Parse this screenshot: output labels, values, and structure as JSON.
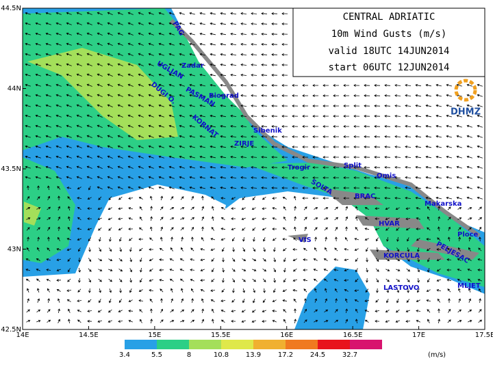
{
  "header": {
    "lines": [
      "CENTRAL ADRIATIC",
      "10m Wind Gusts (m/s)",
      "valid 18UTC 14JUN2014",
      "start 06UTC 12JUN2014"
    ],
    "logo": "DHMZ"
  },
  "x_axis": {
    "labels": [
      "14E",
      "14.5E",
      "15E",
      "15.5E",
      "16E",
      "16.5E",
      "17E",
      "17.5E"
    ]
  },
  "y_axis": {
    "labels": [
      "42.5N",
      "43N",
      "43.5N",
      "44N",
      "44.5N"
    ]
  },
  "places": [
    "PAG",
    "Zadar",
    "UGLJAN",
    "PASMAN",
    "Biograd",
    "DUGI O.",
    "KORNAT",
    "Sibenik",
    "ZIRJE",
    "Trogir",
    "Split",
    "Omis",
    "SOLTA",
    "BRAC",
    "Makarska",
    "HVAR",
    "VIS",
    "Ploce",
    "KORCULA",
    "PELJESAC",
    "LASTOVO",
    "MLJET"
  ],
  "legend": {
    "labels": [
      "3.4",
      "5.5",
      "8",
      "10.8",
      "13.9",
      "17.2",
      "24.5",
      "32.7"
    ],
    "colors": [
      "#28a0e6",
      "#2ccf86",
      "#a4df5a",
      "#dfe84a",
      "#f0b030",
      "#f07a20",
      "#e8141c",
      "#d8146e"
    ],
    "unit": "(m/s)"
  }
}
